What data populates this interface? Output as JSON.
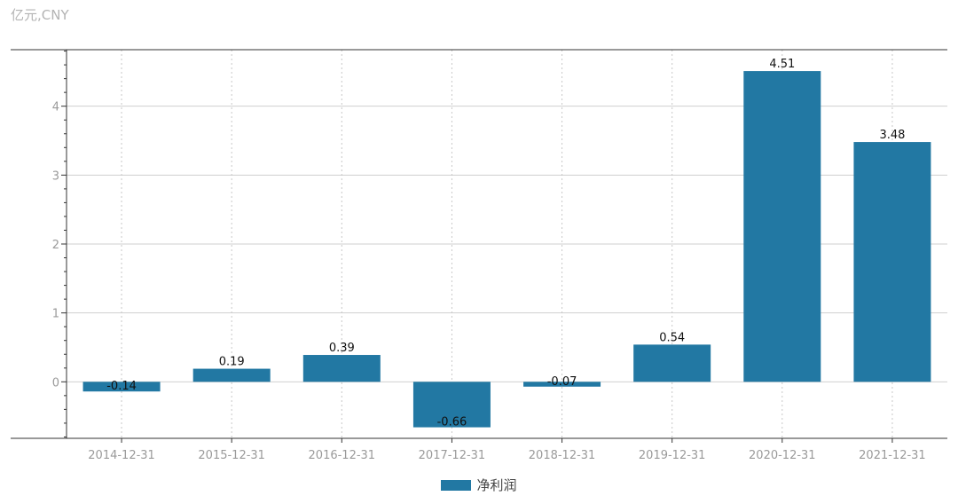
{
  "unit_label": "亿元,CNY",
  "chart_data": {
    "type": "bar",
    "categories": [
      "2014-12-31",
      "2015-12-31",
      "2016-12-31",
      "2017-12-31",
      "2018-12-31",
      "2019-12-31",
      "2020-12-31",
      "2021-12-31"
    ],
    "series": [
      {
        "name": "净利润",
        "values": [
          -0.14,
          0.19,
          0.39,
          -0.66,
          -0.07,
          0.54,
          4.51,
          3.48
        ],
        "color": "#2278a3"
      }
    ],
    "data_labels": [
      "-0.14",
      "0.19",
      "0.39",
      "-0.66",
      "-0.07",
      "0.54",
      "4.51",
      "3.48"
    ],
    "yticks": [
      0,
      1,
      2,
      3,
      4
    ],
    "ylim": [
      -0.82,
      4.82
    ],
    "grid": true,
    "legend_position": "bottom-center"
  }
}
